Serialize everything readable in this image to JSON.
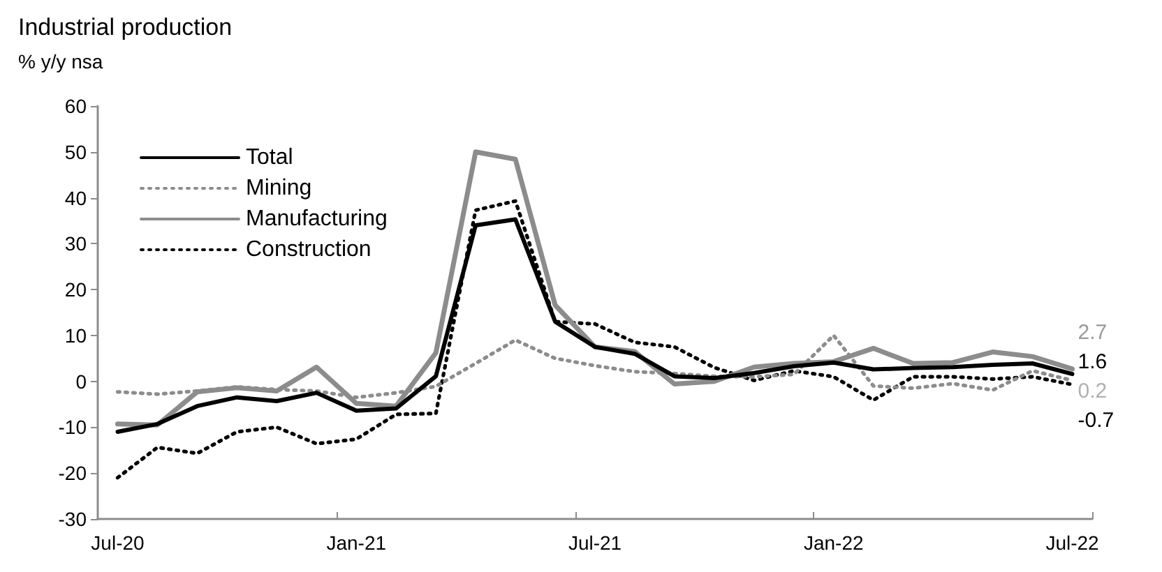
{
  "chart_data": {
    "type": "line",
    "title": "Industrial production",
    "subtitle": "% y/y nsa",
    "categories": [
      "Jul-20",
      null,
      null,
      null,
      null,
      null,
      "Jan-21",
      null,
      null,
      null,
      null,
      null,
      "Jul-21",
      null,
      null,
      null,
      null,
      null,
      "Jan-22",
      null,
      null,
      null,
      null,
      null,
      "Jul-22"
    ],
    "series": [
      {
        "name": "Total",
        "color": "#000000",
        "line_style": "solid",
        "values": [
          -11.0,
          -9.3,
          -5.4,
          -3.5,
          -4.3,
          -2.5,
          -6.4,
          -5.9,
          1.1,
          34,
          35.3,
          13,
          7.5,
          6,
          1.1,
          0.7,
          1.8,
          3.3,
          4.1,
          2.6,
          2.9,
          3.1,
          3.6,
          3.9,
          1.6
        ],
        "value_labels": [
          null,
          null,
          null,
          null,
          null,
          null,
          null,
          null,
          null,
          null,
          null,
          null,
          null,
          null,
          null,
          null,
          null,
          null,
          null,
          null,
          null,
          null,
          null,
          null,
          "1.6"
        ]
      },
      {
        "name": "Mining",
        "color": "#8c8c8c",
        "line_style": "dotted",
        "values": [
          -2.3,
          -2.8,
          -2.1,
          -1.2,
          -1.8,
          -2.1,
          -3.5,
          -2.5,
          -1.1,
          3.9,
          9,
          5,
          3.4,
          2.1,
          1.7,
          1.1,
          1,
          1.5,
          10,
          -1,
          -1.5,
          -0.5,
          -1.9,
          2.3,
          0.2
        ],
        "value_labels": [
          null,
          null,
          null,
          null,
          null,
          null,
          null,
          null,
          null,
          null,
          null,
          null,
          null,
          null,
          null,
          null,
          null,
          null,
          null,
          null,
          null,
          null,
          null,
          null,
          "0.2"
        ]
      },
      {
        "name": "Manufacturing",
        "color": "#8c8c8c",
        "line_style": "solid",
        "values": [
          -9.3,
          -9.5,
          -2.3,
          -1.4,
          -2.1,
          3.1,
          -4.8,
          -5.4,
          6.2,
          50,
          48.4,
          16.6,
          7.5,
          6.5,
          -0.6,
          0,
          3.1,
          3.9,
          4.3,
          7.2,
          3.9,
          4.1,
          6.4,
          5.4,
          2.7
        ],
        "value_labels": [
          null,
          null,
          null,
          null,
          null,
          null,
          null,
          null,
          null,
          null,
          null,
          null,
          null,
          null,
          null,
          null,
          null,
          null,
          null,
          null,
          null,
          null,
          null,
          null,
          "2.7"
        ]
      },
      {
        "name": "Construction",
        "color": "#000000",
        "line_style": "dotted",
        "values": [
          -21,
          -14.4,
          -15.7,
          -11,
          -10,
          -13.6,
          -12.6,
          -7.2,
          -7,
          37.3,
          39.3,
          13,
          12.5,
          8.5,
          7.5,
          3,
          0.2,
          2.3,
          1,
          -4.1,
          1,
          1,
          0.5,
          1,
          -0.7
        ],
        "value_labels": [
          null,
          null,
          null,
          null,
          null,
          null,
          null,
          null,
          null,
          null,
          null,
          null,
          null,
          null,
          null,
          null,
          null,
          null,
          null,
          null,
          null,
          null,
          null,
          null,
          "-0.7"
        ]
      }
    ],
    "ylim": [
      -30,
      60
    ],
    "yticks": [
      -30,
      -20,
      -10,
      0,
      10,
      20,
      30,
      40,
      50,
      60
    ],
    "grid": false,
    "legend": "top left",
    "marker": "none"
  }
}
